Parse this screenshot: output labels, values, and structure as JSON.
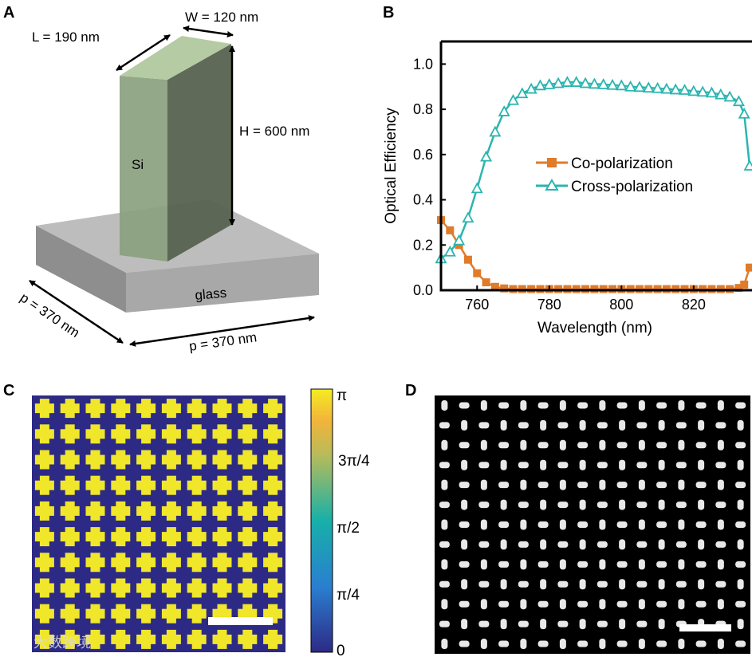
{
  "panels": {
    "a": {
      "letter": "A",
      "pillar_label": "Si",
      "substrate_label": "glass",
      "dim_L": "L = 190 nm",
      "dim_W": "W = 120 nm",
      "dim_H": "H = 600 nm",
      "dim_p_left": "p = 370 nm",
      "dim_p_right": "p = 370 nm"
    },
    "b": {
      "letter": "B"
    },
    "c": {
      "letter": "C",
      "colorbar_ticks": [
        "π",
        "3π/4",
        "π/2",
        "π/4",
        "0"
      ],
      "watermark": "大数跨境",
      "grid_cols": 10,
      "grid_rows": 10
    },
    "d": {
      "letter": "D",
      "grid_cols": 16,
      "grid_rows": 13
    }
  },
  "colors": {
    "co": "#e07b2a",
    "cross": "#2bb5b0",
    "phase_low": "#2d2a86",
    "phase_high": "#f0e62a"
  },
  "chart_data": {
    "type": "line",
    "xlabel": "Wavelength (nm)",
    "ylabel": "Optical Efficiency",
    "xlim": [
      750,
      835.5
    ],
    "ylim": [
      0,
      1.1
    ],
    "xticks": [
      760,
      780,
      800,
      820
    ],
    "xtick_labels": [
      "760",
      "780",
      "800",
      "820"
    ],
    "yticks": [
      0,
      0.2,
      0.4,
      0.6,
      0.8,
      1.0
    ],
    "ytick_labels": [
      "0.0",
      "0.2",
      "0.4",
      "0.6",
      "0.8",
      "1.0"
    ],
    "legend_position": "center-right",
    "x": [
      750,
      752.5,
      755,
      757.5,
      760,
      762.5,
      765,
      767.5,
      770,
      772.5,
      775,
      777.5,
      780,
      782.5,
      785,
      787.5,
      790,
      792.5,
      795,
      797.5,
      800,
      802.5,
      805,
      807.5,
      810,
      812.5,
      815,
      817.5,
      820,
      822.5,
      825,
      827.5,
      830,
      832.5,
      834,
      835.5
    ],
    "series": [
      {
        "name": "Co-polarization",
        "marker": "square",
        "values": [
          0.31,
          0.265,
          0.2,
          0.135,
          0.075,
          0.035,
          0.015,
          0.008,
          0.005,
          0.005,
          0.005,
          0.005,
          0.005,
          0.005,
          0.005,
          0.005,
          0.005,
          0.005,
          0.005,
          0.005,
          0.005,
          0.005,
          0.005,
          0.005,
          0.005,
          0.005,
          0.005,
          0.005,
          0.005,
          0.005,
          0.005,
          0.005,
          0.005,
          0.01,
          0.025,
          0.1
        ]
      },
      {
        "name": "Cross-polarization",
        "marker": "triangle",
        "values": [
          0.14,
          0.17,
          0.22,
          0.32,
          0.45,
          0.59,
          0.7,
          0.79,
          0.84,
          0.87,
          0.89,
          0.905,
          0.91,
          0.915,
          0.92,
          0.92,
          0.915,
          0.912,
          0.91,
          0.907,
          0.905,
          0.9,
          0.898,
          0.895,
          0.893,
          0.89,
          0.887,
          0.885,
          0.88,
          0.877,
          0.873,
          0.865,
          0.855,
          0.835,
          0.78,
          0.55
        ]
      }
    ]
  }
}
